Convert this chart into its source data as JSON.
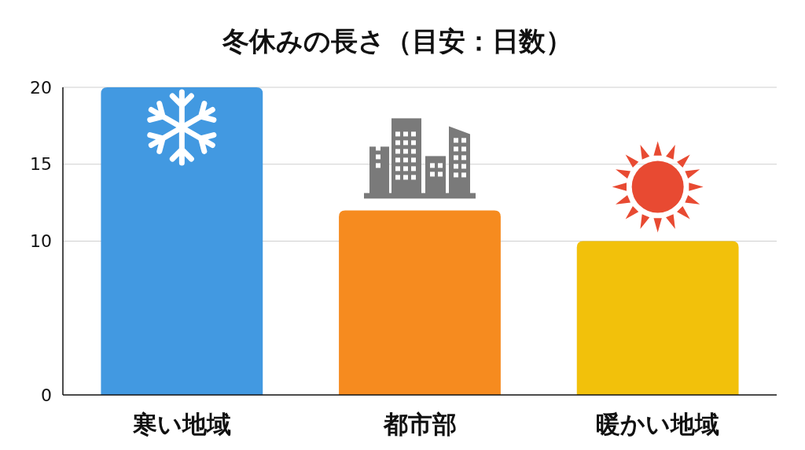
{
  "chart_data": {
    "type": "bar",
    "title": "冬休みの長さ（目安：日数）",
    "categories": [
      "寒い地域",
      "都市部",
      "暖かい地域"
    ],
    "values": [
      20,
      12,
      10
    ],
    "colors": [
      "#4299e1",
      "#f68b1f",
      "#f2c10b"
    ],
    "ylim": [
      0,
      20
    ],
    "yticks": [
      0,
      10,
      15,
      20
    ],
    "grid": "y"
  }
}
